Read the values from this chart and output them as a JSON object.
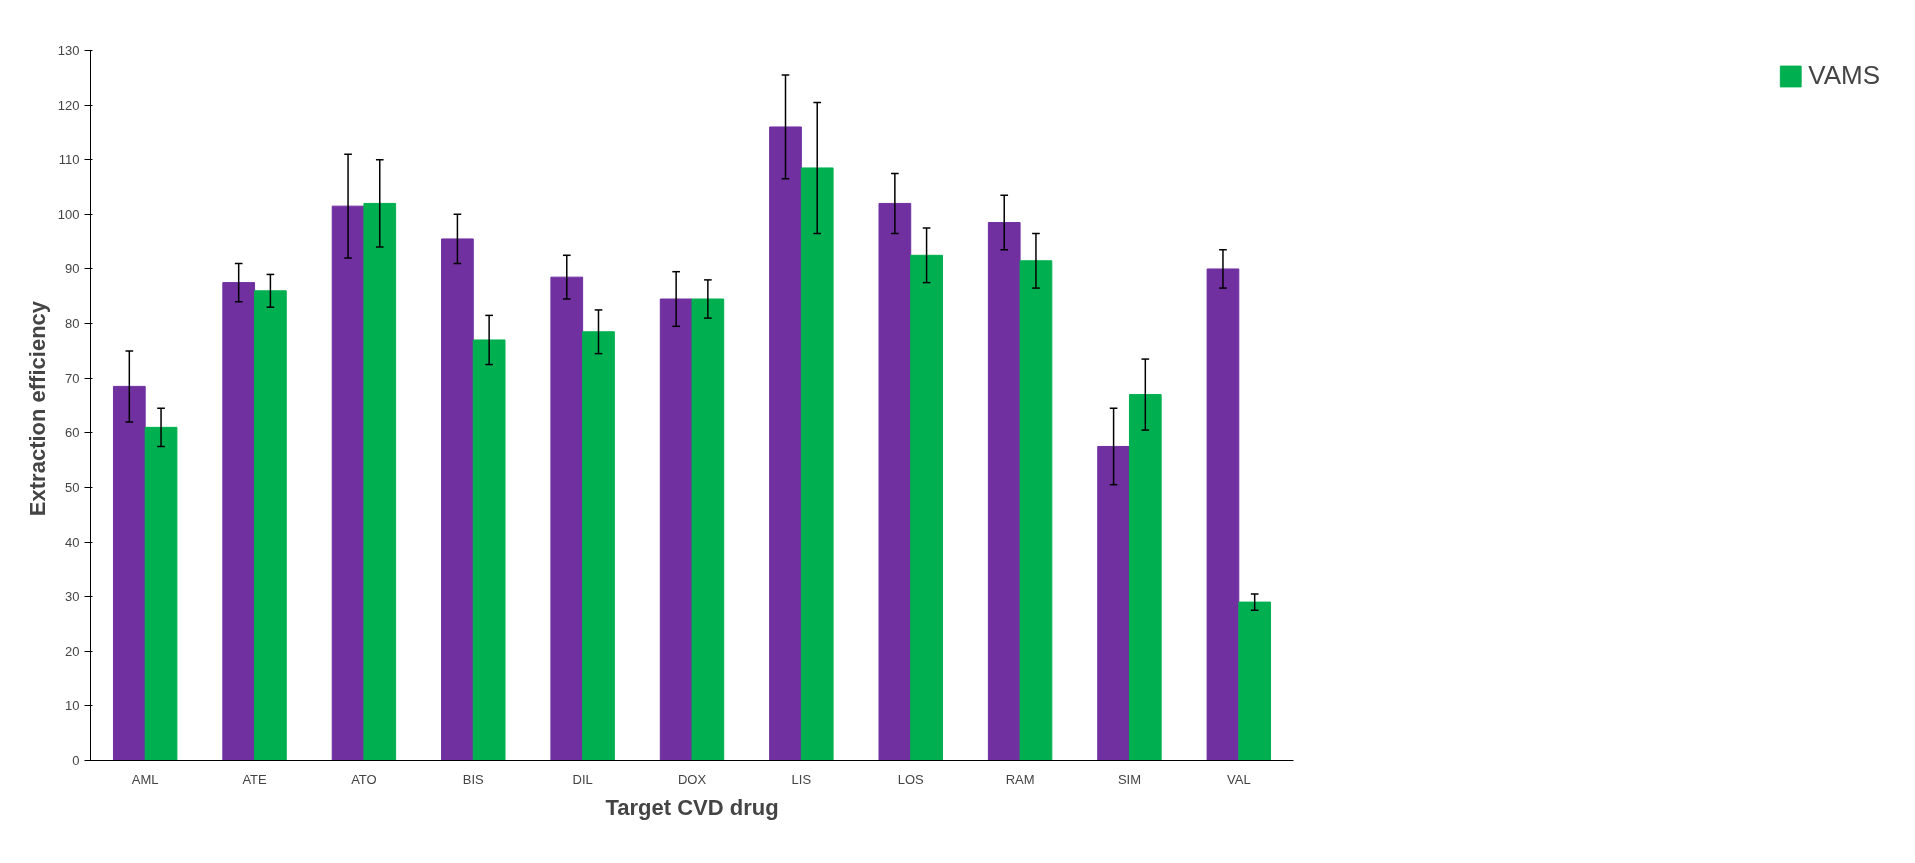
{
  "chart_data": {
    "type": "bar",
    "xlabel": "Target CVD drug",
    "ylabel": "Extraction  efficiency",
    "categories": [
      "AML",
      "ATE",
      "ATO",
      "BIS",
      "DIL",
      "DOX",
      "LIS",
      "LOS",
      "RAM",
      "SIM",
      "VAL"
    ],
    "series": [
      {
        "color": "#7030a0",
        "values": [
          68.5,
          87.5,
          101.5,
          95.5,
          88.5,
          84.5,
          116,
          102,
          98.5,
          57.5,
          90
        ],
        "errors": [
          6.5,
          3.5,
          9.5,
          4.5,
          4,
          5,
          9.5,
          5.5,
          5,
          7,
          3.5
        ]
      },
      {
        "name": "VAMS",
        "color": "#00b050",
        "values": [
          61,
          86,
          102,
          77,
          78.5,
          84.5,
          108.5,
          92.5,
          91.5,
          67,
          29
        ],
        "errors": [
          3.5,
          3,
          8,
          4.5,
          4,
          3.5,
          12,
          5,
          5,
          6.5,
          1.5
        ]
      }
    ],
    "ylim": [
      0,
      130
    ],
    "yticks": [
      0,
      10,
      20,
      30,
      40,
      50,
      60,
      70,
      80,
      90,
      100,
      110,
      120,
      130
    ],
    "grid": false,
    "legend": "right"
  }
}
